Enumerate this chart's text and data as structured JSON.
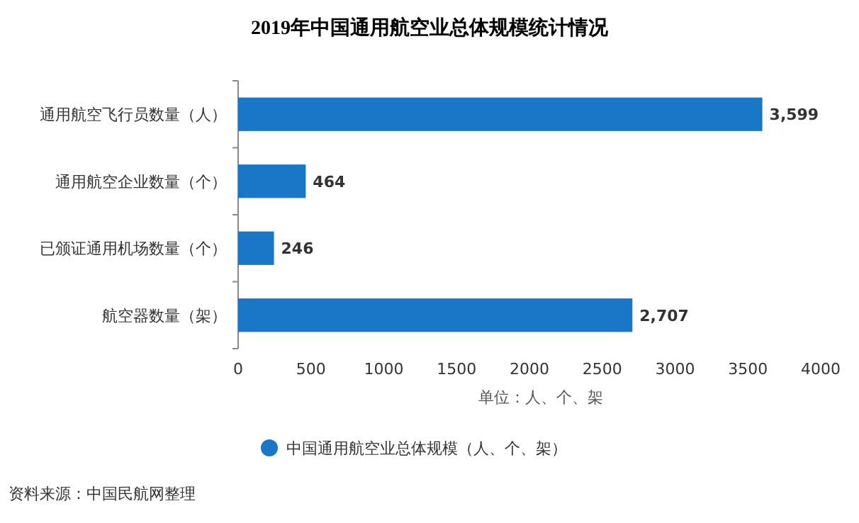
{
  "chart_data": {
    "type": "bar",
    "orientation": "horizontal",
    "title": "2019年中国通用航空业总体规模统计情况",
    "categories": [
      "通用航空飞行员数量（人）",
      "通用航空企业数量（个）",
      "已颁证通用机场数量（个）",
      "航空器数量（架）"
    ],
    "series": [
      {
        "name": "中国通用航空业总体规模（人、个、架）",
        "color": "#1a76c6",
        "values": [
          3599,
          464,
          246,
          2707
        ],
        "value_labels": [
          "3,599",
          "464",
          "246",
          "2,707"
        ]
      }
    ],
    "xlim": [
      0,
      4000
    ],
    "xticks": [
      0,
      500,
      1000,
      1500,
      2000,
      2500,
      3000,
      3500,
      4000
    ],
    "xlabel": "单位：人、个、架",
    "legend": "bottom",
    "grid": false,
    "annotations": [
      "资料来源：中国民航网整理"
    ]
  }
}
